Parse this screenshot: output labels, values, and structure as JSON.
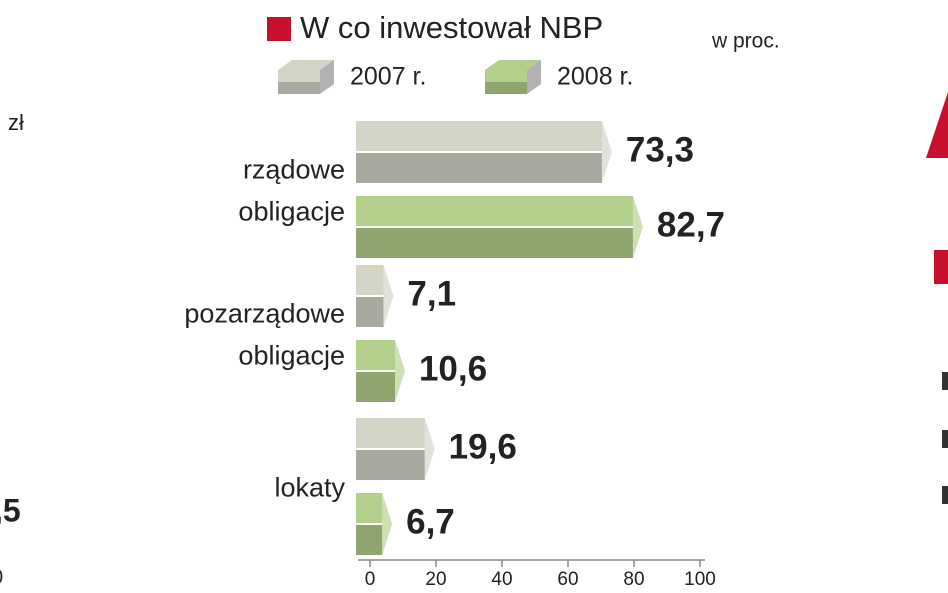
{
  "chart_data": {
    "type": "bar",
    "orientation": "horizontal",
    "title": "W co inwestował NBP",
    "subtitle": "w proc.",
    "title_marker_color": "#c8102e",
    "categories": [
      [
        "rządowe",
        "obligacje"
      ],
      [
        "pozarządowe",
        "obligacje"
      ],
      [
        "lokaty"
      ]
    ],
    "series": [
      {
        "name": "2007 r.",
        "color": "#d3d3c6",
        "values": [
          73.3,
          7.1,
          19.6
        ],
        "value_labels": [
          "73,3",
          "7,1",
          "19,6"
        ]
      },
      {
        "name": "2008 r.",
        "color": "#b3cf8c",
        "values": [
          82.7,
          10.6,
          6.7
        ],
        "value_labels": [
          "82,7",
          "10,6",
          "6,7"
        ]
      }
    ],
    "xlim": [
      0,
      100
    ],
    "xticks": [
      0,
      20,
      40,
      60,
      80,
      100
    ],
    "fragments": [
      "zł",
      ",5",
      "0"
    ]
  }
}
